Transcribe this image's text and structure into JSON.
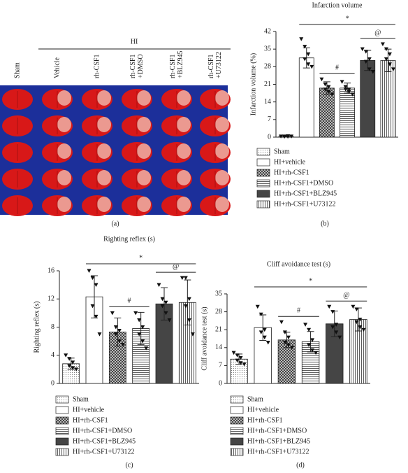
{
  "panel_a": {
    "group": "HI",
    "columns": [
      [
        "Sham"
      ],
      [
        "Vehicle"
      ],
      [
        "rh-CSF1"
      ],
      [
        "rh-CSF1",
        "+DMSO"
      ],
      [
        "rh-CSF1",
        "+BLZ945"
      ],
      [
        "rh-CSF1",
        "+U73122"
      ]
    ],
    "label": "(a)"
  },
  "chart_data": [
    {
      "type": "bar",
      "title": "Infarction volume",
      "ylabel": "Infarction volume (%)",
      "panel_label": "(b)",
      "ylim": [
        0,
        42
      ],
      "yticks": [
        0,
        7,
        14,
        21,
        28,
        35,
        42
      ],
      "series": [
        {
          "name": "Sham",
          "color": "#ffffff",
          "pattern": "dots",
          "values": [
            0.3
          ],
          "errors": [
            0.2
          ],
          "points": [
            0.3,
            0.2,
            0.4,
            0.3,
            0.2,
            0.3
          ]
        },
        {
          "name": "HI+vehicle",
          "color": "#ffffff",
          "pattern": "none",
          "values": [
            31.5
          ],
          "errors": [
            4
          ],
          "points": [
            39,
            36,
            33,
            31,
            29,
            28
          ]
        },
        {
          "name": "HI+rh-CSF1",
          "color": "#555555",
          "pattern": "checker",
          "values": [
            19.5
          ],
          "errors": [
            2.5
          ],
          "points": [
            23,
            21,
            20,
            19,
            18,
            17
          ]
        },
        {
          "name": "HI+rh-CSF1+DMSO",
          "color": "#ffffff",
          "pattern": "hlines",
          "values": [
            19.5
          ],
          "errors": [
            2
          ],
          "points": [
            22,
            20,
            19,
            19,
            18,
            17
          ]
        },
        {
          "name": "HI+rh-CSF1+BLZ945",
          "color": "#454545",
          "pattern": "solid",
          "values": [
            30.5
          ],
          "errors": [
            4
          ],
          "points": [
            35,
            34,
            31,
            30,
            27,
            26
          ]
        },
        {
          "name": "HI+rh-CSF1+U73122",
          "color": "#ffffff",
          "pattern": "vlines",
          "values": [
            30.5
          ],
          "errors": [
            4.5
          ],
          "points": [
            37,
            35,
            33,
            31,
            29,
            27
          ]
        }
      ],
      "annotations": [
        "*",
        "#",
        "@"
      ]
    },
    {
      "type": "bar",
      "title": "Righting reflex (s)",
      "ylabel": "Righting reflex (s)",
      "panel_label": "(c)",
      "ylim": [
        0,
        16
      ],
      "yticks": [
        0,
        4,
        8,
        12,
        16
      ],
      "series": [
        {
          "name": "Sham",
          "color": "#ffffff",
          "pattern": "dots",
          "values": [
            2.8
          ],
          "errors": [
            0.8
          ],
          "points": [
            4,
            3.5,
            3,
            2.5,
            2.2,
            2
          ]
        },
        {
          "name": "HI+vehicle",
          "color": "#ffffff",
          "pattern": "none",
          "values": [
            12.3
          ],
          "errors": [
            3
          ],
          "points": [
            16,
            15,
            14,
            11,
            9.5,
            7
          ]
        },
        {
          "name": "HI+rh-CSF1",
          "color": "#555555",
          "pattern": "checker",
          "values": [
            7.3
          ],
          "errors": [
            2
          ],
          "points": [
            10,
            8,
            7.5,
            7,
            6,
            5.5
          ]
        },
        {
          "name": "HI+rh-CSF1+DMSO",
          "color": "#ffffff",
          "pattern": "hlines",
          "values": [
            7.8
          ],
          "errors": [
            2.3
          ],
          "points": [
            10,
            9,
            8,
            7,
            6,
            5
          ]
        },
        {
          "name": "HI+rh-CSF1+BLZ945",
          "color": "#454545",
          "pattern": "solid",
          "values": [
            11.3
          ],
          "errors": [
            2.3
          ],
          "points": [
            14,
            12,
            11.5,
            11,
            10,
            9
          ]
        },
        {
          "name": "HI+rh-CSF1+U73122",
          "color": "#ffffff",
          "pattern": "vlines",
          "values": [
            11.5
          ],
          "errors": [
            3.2
          ],
          "points": [
            15,
            15,
            12,
            11,
            9,
            7
          ]
        }
      ],
      "annotations": [
        "*",
        "#",
        "@"
      ]
    },
    {
      "type": "bar",
      "title": "Cliff avoidance test (s)",
      "ylabel": "Cliff avoidance test (s)",
      "panel_label": "(d)",
      "ylim": [
        0,
        35
      ],
      "yticks": [
        0,
        7,
        14,
        21,
        28,
        35
      ],
      "series": [
        {
          "name": "Sham",
          "color": "#ffffff",
          "pattern": "dots",
          "values": [
            9.5
          ],
          "errors": [
            2
          ],
          "points": [
            12,
            11,
            10,
            9,
            8,
            7.5
          ]
        },
        {
          "name": "HI+vehicle",
          "color": "#ffffff",
          "pattern": "none",
          "values": [
            21.8
          ],
          "errors": [
            5
          ],
          "points": [
            30,
            27,
            21,
            20,
            18,
            16
          ]
        },
        {
          "name": "HI+rh-CSF1",
          "color": "#555555",
          "pattern": "checker",
          "values": [
            17
          ],
          "errors": [
            3
          ],
          "points": [
            24,
            20,
            18,
            16,
            15,
            14
          ]
        },
        {
          "name": "HI+rh-CSF1+DMSO",
          "color": "#ffffff",
          "pattern": "hlines",
          "values": [
            16.3
          ],
          "errors": [
            4
          ],
          "points": [
            23,
            21,
            17,
            15,
            13,
            12
          ]
        },
        {
          "name": "HI+rh-CSF1+BLZ945",
          "color": "#454545",
          "pattern": "solid",
          "values": [
            23.3
          ],
          "errors": [
            5
          ],
          "points": [
            30,
            28,
            23,
            22,
            20,
            18
          ]
        },
        {
          "name": "HI+rh-CSF1+U73122",
          "color": "#ffffff",
          "pattern": "vlines",
          "values": [
            25
          ],
          "errors": [
            4.5
          ],
          "points": [
            30,
            29,
            25,
            24,
            22,
            21
          ]
        }
      ],
      "annotations": [
        "*",
        "#",
        "@"
      ]
    }
  ]
}
